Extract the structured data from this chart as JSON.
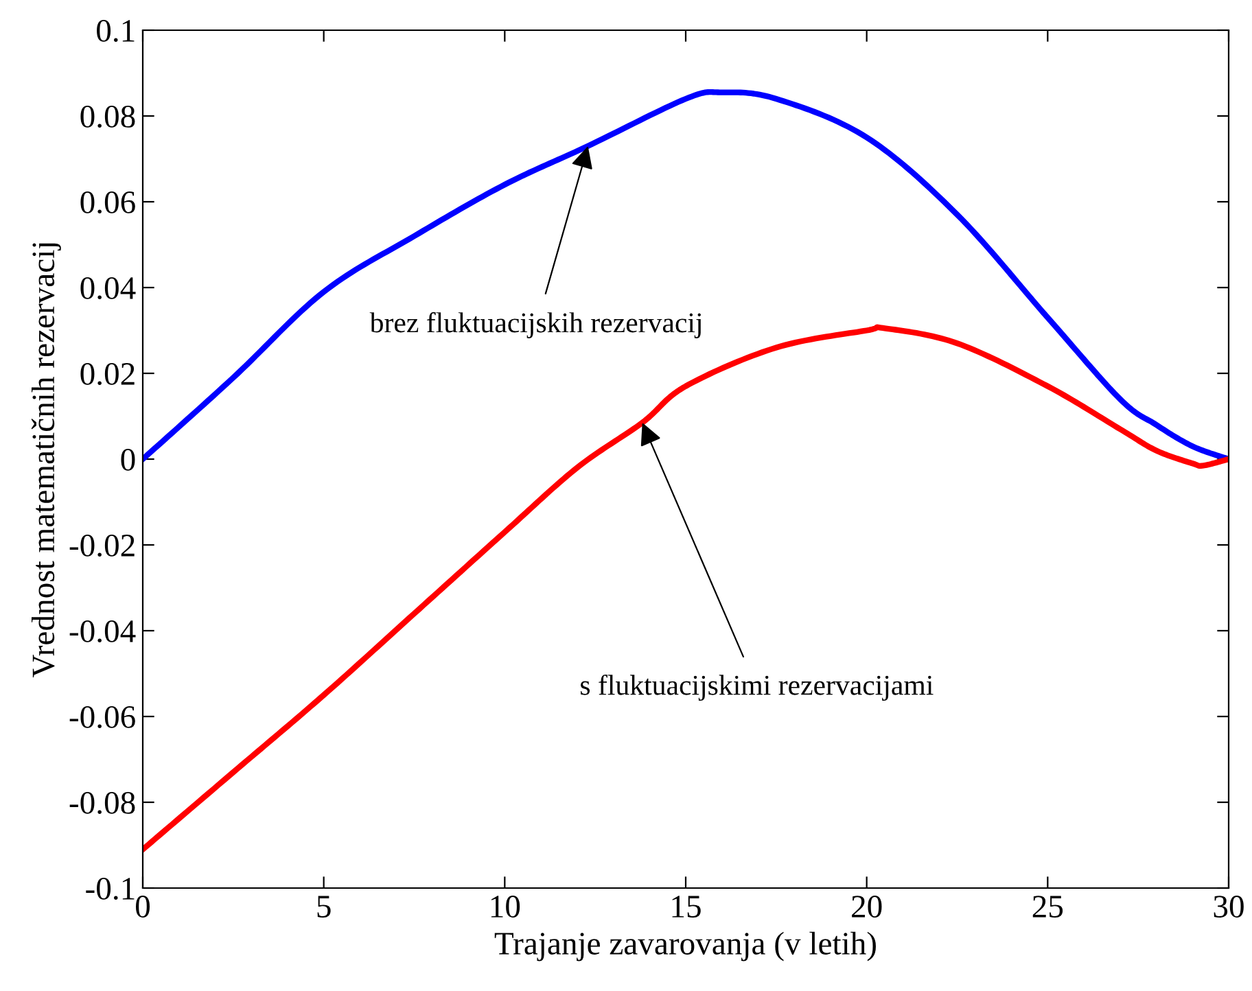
{
  "chart_data": {
    "type": "line",
    "xlabel": "Trajanje zavarovanja (v letih)",
    "ylabel": "Vrednost matematičnih rezervacij",
    "xlim": [
      0,
      30
    ],
    "ylim": [
      -0.1,
      0.1
    ],
    "xticks": [
      0,
      5,
      10,
      15,
      20,
      25,
      30
    ],
    "yticks": [
      -0.1,
      -0.08,
      -0.06,
      -0.04,
      -0.02,
      0,
      0.02,
      0.04,
      0.06,
      0.08,
      0.1
    ],
    "grid": false,
    "legend": false,
    "marker": "none",
    "line_style": "solid",
    "series": [
      {
        "color": "#0000ff",
        "x": [
          0,
          2.5,
          5,
          7.5,
          10,
          12.3,
          15,
          16,
          17.5,
          20,
          22.5,
          25,
          27,
          28,
          29,
          30
        ],
        "values": [
          0,
          0.019,
          0.039,
          0.052,
          0.064,
          0.073,
          0.084,
          0.0855,
          0.084,
          0.075,
          0.057,
          0.033,
          0.014,
          0.008,
          0.003,
          0
        ]
      },
      {
        "color": "#ff0000",
        "x": [
          0,
          2.5,
          5,
          7.5,
          10,
          12,
          13.8,
          15,
          17.5,
          20,
          20.5,
          22.5,
          25,
          27,
          28,
          29,
          29.3,
          30
        ],
        "values": [
          -0.091,
          -0.073,
          -0.055,
          -0.036,
          -0.017,
          -0.002,
          0.0085,
          0.017,
          0.026,
          0.03,
          0.0305,
          0.027,
          0.017,
          0.007,
          0.002,
          -0.001,
          -0.0015,
          0
        ]
      }
    ],
    "annotations": [
      {
        "text": "brez fluktuacijskih rezervacij",
        "x": 12.3,
        "y": 0.073
      },
      {
        "text": "s fluktuacijskimi rezervacijami",
        "x": 13.8,
        "y": 0.0085
      }
    ]
  }
}
